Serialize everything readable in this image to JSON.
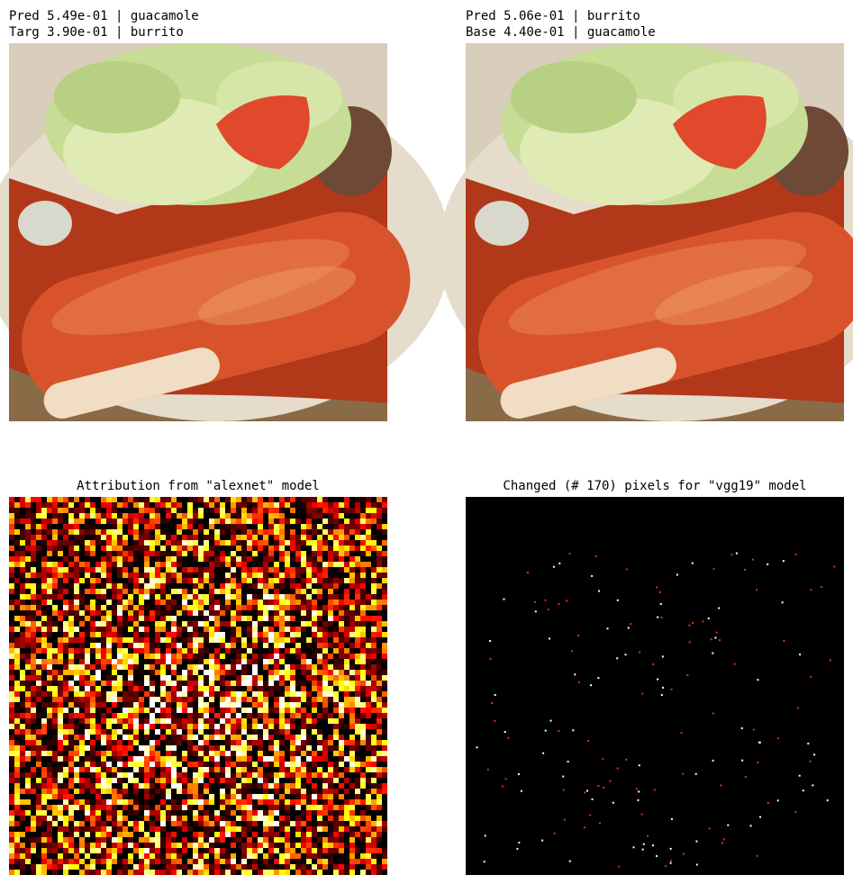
{
  "panels": [
    {
      "title_lines": [
        "Pred 5.49e-01 | guacamole",
        "Targ 3.90e-01 | burrito"
      ]
    },
    {
      "title_lines": [
        "Pred 5.06e-01 | burrito",
        "Base 4.40e-01 | guacamole"
      ]
    },
    {
      "title_lines": [
        "Attribution from \"alexnet\" model"
      ]
    },
    {
      "title_lines": [
        "Changed (# 170) pixels for \"vgg19\" model"
      ]
    }
  ]
}
